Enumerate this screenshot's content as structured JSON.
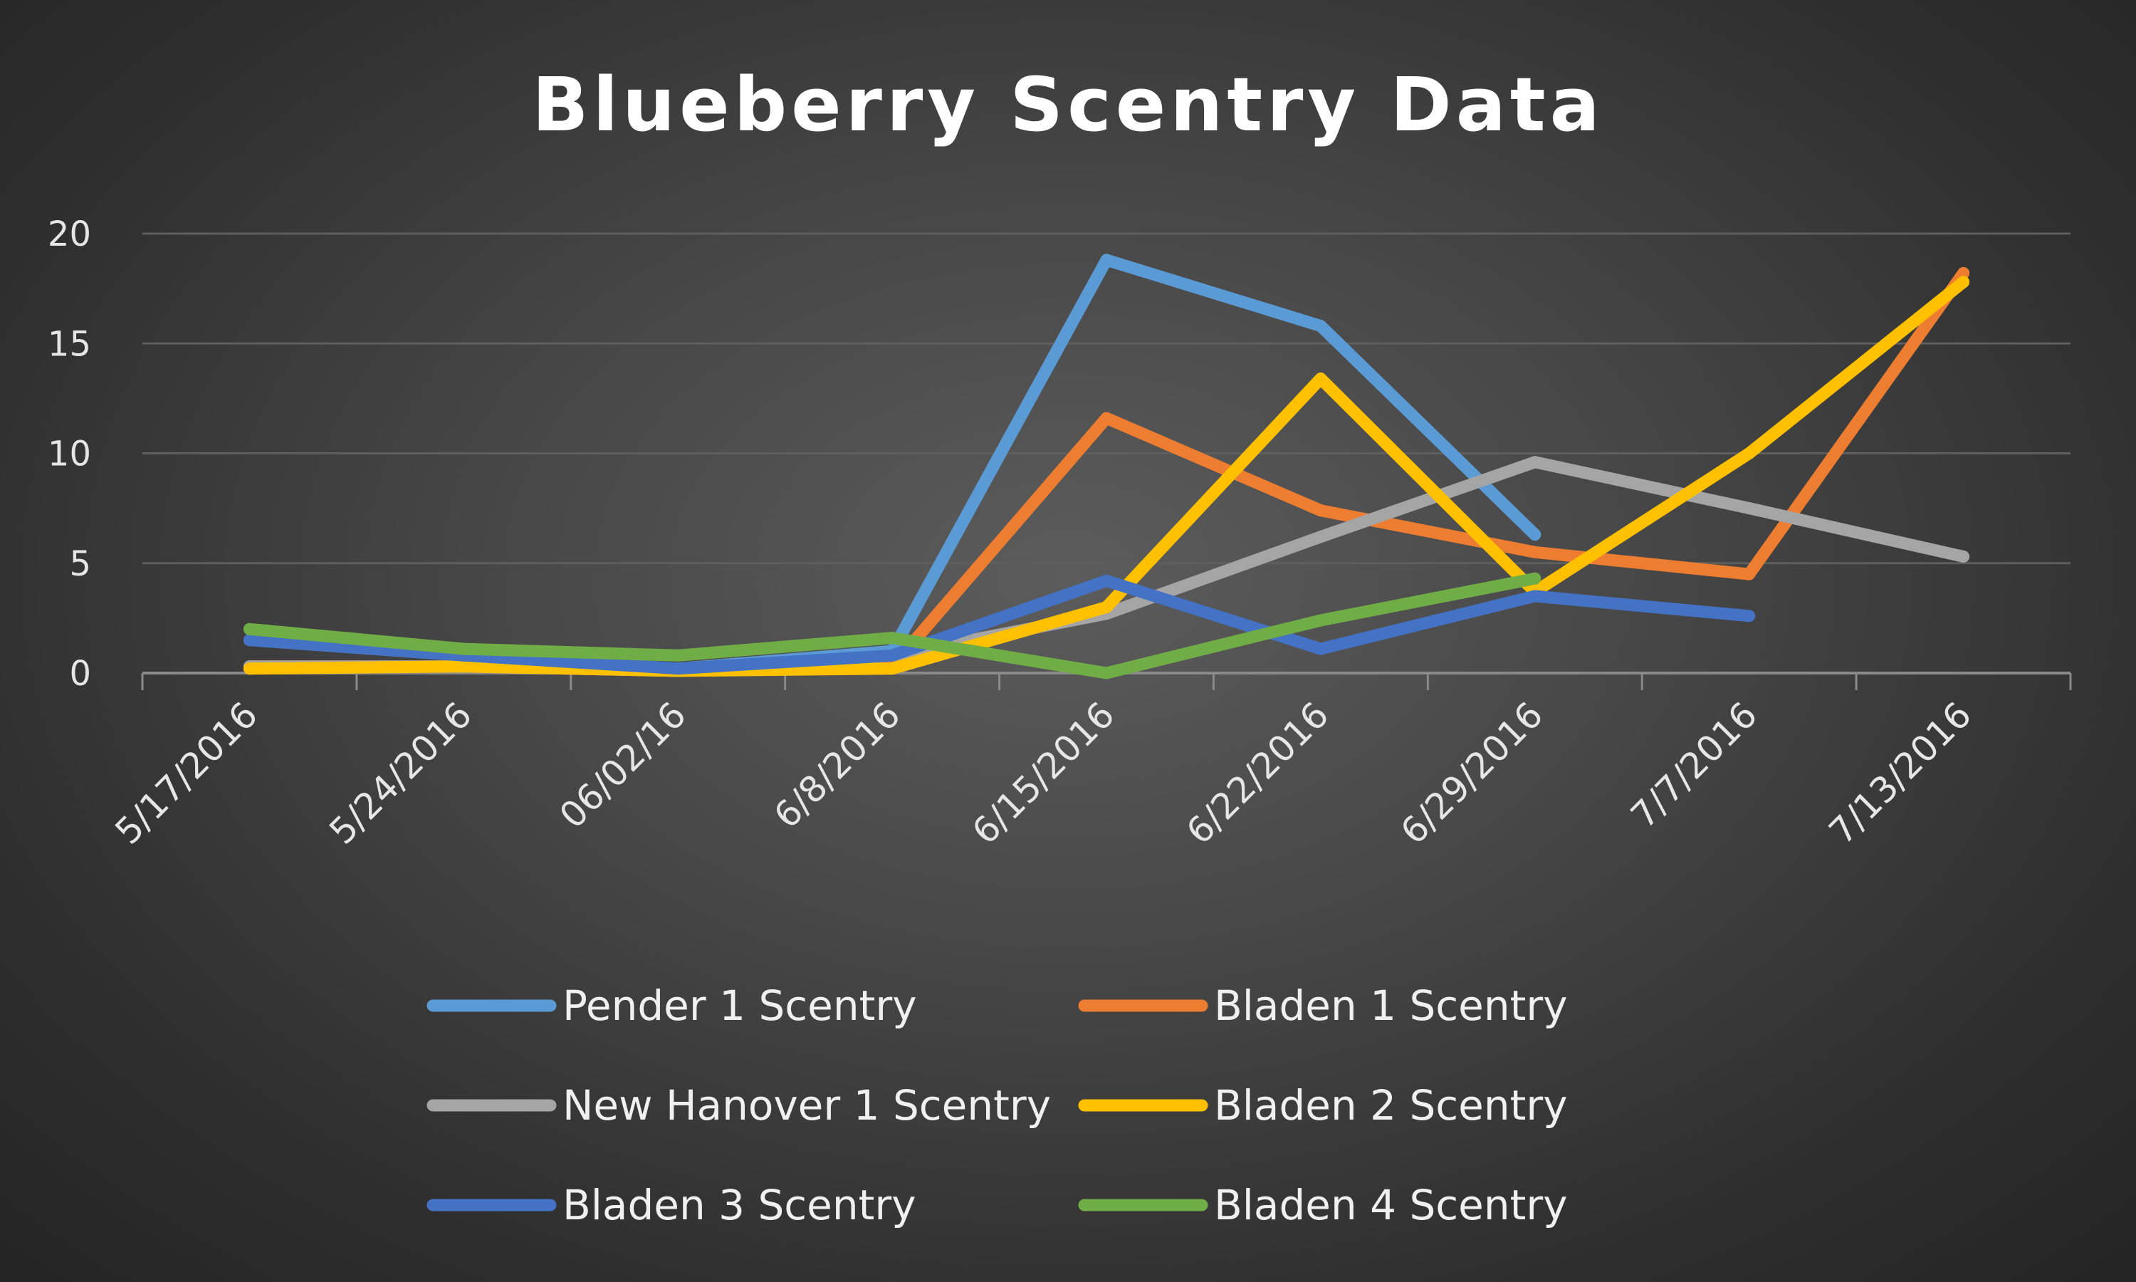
{
  "chart_data": {
    "type": "line",
    "title": "Blueberry Scentry Data",
    "xlabel": "",
    "ylabel": "",
    "categories": [
      "5/17/2016",
      "5/24/2016",
      "06/02/16",
      "6/8/2016",
      "6/15/2016",
      "6/22/2016",
      "6/29/2016",
      "7/7/2016",
      "7/13/2016"
    ],
    "ylim": [
      0,
      20
    ],
    "yticks": [
      0,
      5,
      10,
      15,
      20
    ],
    "grid": true,
    "legend_position": "bottom",
    "series": [
      {
        "name": "Pender 1 Scentry",
        "color": "#5B9BD5",
        "values": [
          1.5,
          0.8,
          0.2,
          1.0,
          18.8,
          15.8,
          6.3,
          null,
          null
        ]
      },
      {
        "name": "Bladen 1 Scentry",
        "color": "#ED7D31",
        "values": [
          0.3,
          0.3,
          0.1,
          0.3,
          11.6,
          7.4,
          5.5,
          4.5,
          18.2
        ]
      },
      {
        "name": "New Hanover 1 Scentry",
        "color": "#A5A5A5",
        "values": [
          0.3,
          0.3,
          0.1,
          0.8,
          2.7,
          6.2,
          9.6,
          7.5,
          5.3
        ]
      },
      {
        "name": "Bladen 2 Scentry",
        "color": "#FFC000",
        "values": [
          0.2,
          0.3,
          0.1,
          0.2,
          3.0,
          13.4,
          3.7,
          10.0,
          17.8
        ]
      },
      {
        "name": "Bladen 3 Scentry",
        "color": "#4472C4",
        "values": [
          1.5,
          0.8,
          0.2,
          0.8,
          4.2,
          1.1,
          3.5,
          2.6,
          null
        ]
      },
      {
        "name": "Bladen 4 Scentry",
        "color": "#70AD47",
        "values": [
          2.0,
          1.1,
          0.8,
          1.6,
          0.0,
          2.4,
          4.3,
          null,
          null
        ]
      }
    ]
  }
}
